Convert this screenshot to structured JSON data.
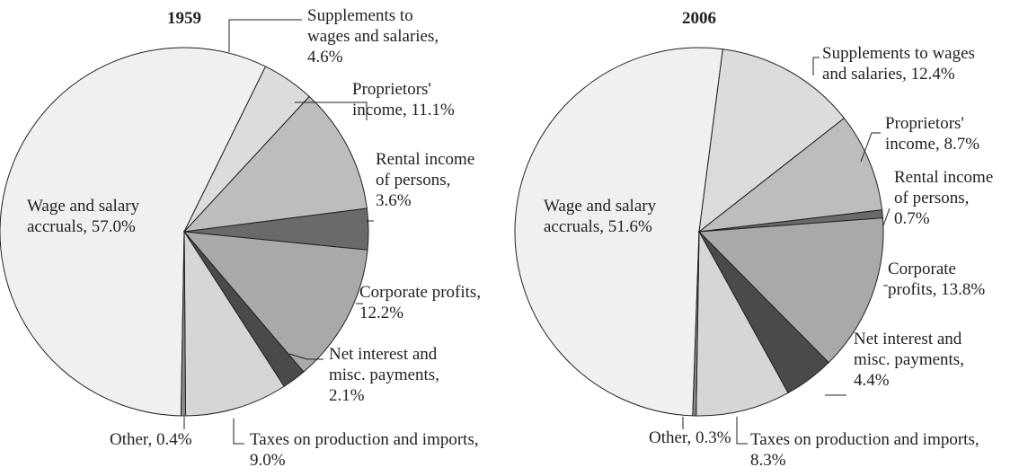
{
  "chart_data": [
    {
      "type": "pie",
      "title": "1959",
      "categories": [
        "Wage and salary accruals",
        "Supplements to wages and salaries",
        "Proprietors' income",
        "Rental income of persons",
        "Corporate profits",
        "Net interest and misc. payments",
        "Taxes on production and imports",
        "Other"
      ],
      "values": [
        57.0,
        4.6,
        11.1,
        3.6,
        12.2,
        2.1,
        9.0,
        0.4
      ],
      "value_labels": [
        "57.0%",
        "4.6%",
        "11.1%",
        "3.6%",
        "12.2%",
        "2.1%",
        "9.0%",
        "0.4%"
      ],
      "colors": [
        "#f0f0f0",
        "#dcdcdc",
        "#bdbdbd",
        "#6a6a6a",
        "#a9a9a9",
        "#4a4a4a",
        "#d6d6d6",
        "#8a8a8a"
      ]
    },
    {
      "type": "pie",
      "title": "2006",
      "categories": [
        "Wage and salary accruals",
        "Supplements to wages and salaries",
        "Proprietors' income",
        "Rental income of persons",
        "Corporate profits",
        "Net interest and misc. payments",
        "Taxes on production and imports",
        "Other"
      ],
      "values": [
        51.6,
        12.4,
        8.7,
        0.7,
        13.8,
        4.4,
        8.3,
        0.3
      ],
      "value_labels": [
        "51.6%",
        "12.4%",
        "8.7%",
        "0.7%",
        "13.8%",
        "4.4%",
        "8.3%",
        "0.3%"
      ],
      "colors": [
        "#f0f0f0",
        "#dcdcdc",
        "#bdbdbd",
        "#6a6a6a",
        "#a9a9a9",
        "#4a4a4a",
        "#d6d6d6",
        "#8a8a8a"
      ]
    }
  ]
}
